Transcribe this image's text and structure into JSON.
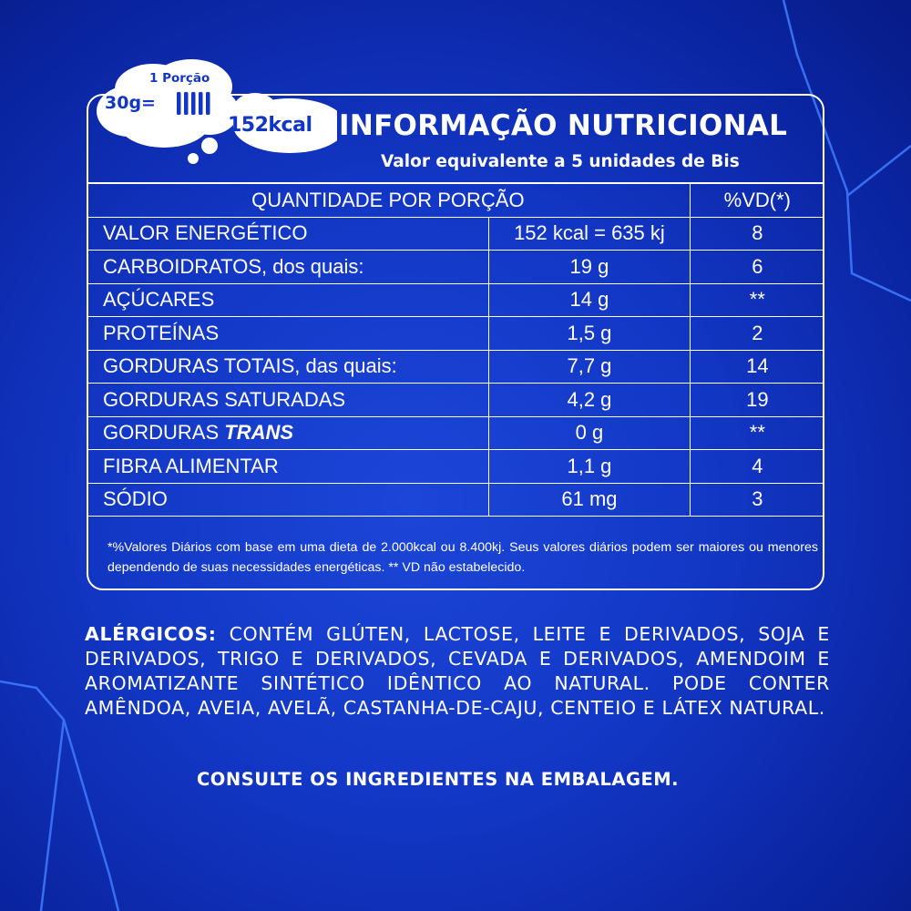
{
  "badge": {
    "portion_label": "1 Porção",
    "grams": "30g",
    "equals": "=",
    "kcal": "152kcal"
  },
  "header": {
    "title": "INFORMAÇÃO NUTRICIONAL",
    "subtitle": "Valor equivalente a 5 unidades de Bis"
  },
  "table": {
    "col_quantity": "QUANTIDADE POR PORÇÃO",
    "col_vd": "%VD(*)",
    "rows": [
      {
        "name": "VALOR ENERGÉTICO",
        "qty": "152 kcal = 635 kj",
        "vd": "8"
      },
      {
        "name": "CARBOIDRATOS, dos quais:",
        "qty": "19 g",
        "vd": "6"
      },
      {
        "name": "AÇÚCARES",
        "qty": "14 g",
        "vd": "**"
      },
      {
        "name": "PROTEÍNAS",
        "qty": "1,5 g",
        "vd": "2"
      },
      {
        "name": "GORDURAS TOTAIS, das quais:",
        "qty": "7,7 g",
        "vd": "14"
      },
      {
        "name": "GORDURAS SATURADAS",
        "qty": "4,2 g",
        "vd": "19"
      },
      {
        "name": "GORDURAS",
        "name_emph": "TRANS",
        "qty": "0 g",
        "vd": "**"
      },
      {
        "name": "FIBRA ALIMENTAR",
        "qty": "1,1 g",
        "vd": "4"
      },
      {
        "name": "SÓDIO",
        "qty": "61 mg",
        "vd": "3"
      }
    ],
    "footnote": "*%Valores Diários com base em uma dieta de 2.000kcal ou 8.400kj. Seus valores diários podem ser maiores ou menores dependendo de suas necessidades energéticas. ** VD não estabelecido."
  },
  "allergens": {
    "label": "ALÉRGICOS:",
    "text": "CONTÉM GLÚTEN, LACTOSE, LEITE E DERIVADOS, SOJA E DERIVADOS, TRIGO E DERIVADOS, CEVADA E DERIVADOS, AMENDOIM E AROMATIZANTE SINTÉTICO IDÊNTICO AO NATURAL. PODE CONTER AMÊNDOA, AVEIA, AVELÃ, CASTANHA-DE-CAJU, CENTEIO E LÁTEX NATURAL."
  },
  "consult": "CONSULTE OS INGREDIENTES NA EMBALAGEM.",
  "colors": {
    "background": "#1236c4",
    "text": "#ffffff",
    "badge_text": "#1236c4",
    "accent_lines": "#3f7cff"
  },
  "icons": [
    "cloud-badge-icon",
    "bis-bars-icon",
    "background-circuit-lines"
  ]
}
